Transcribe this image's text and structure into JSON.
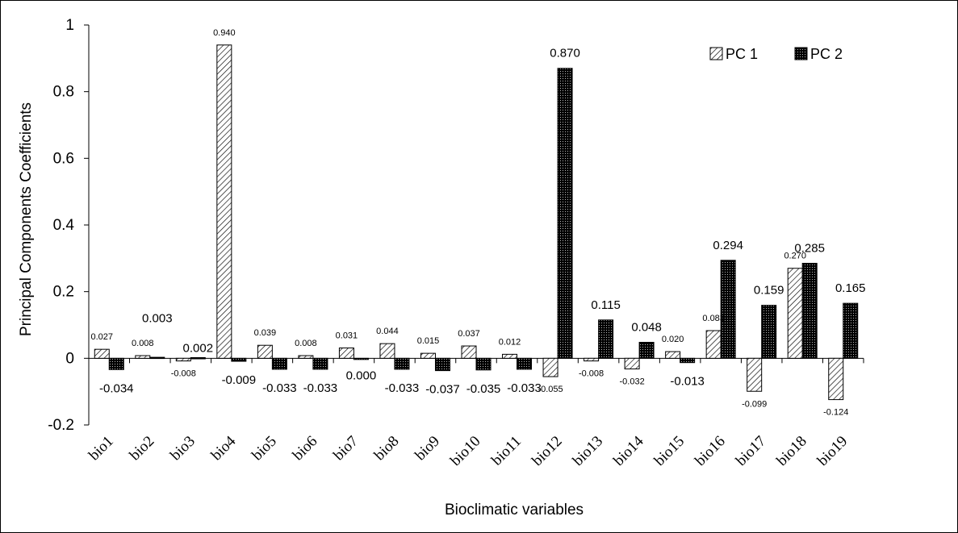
{
  "chart_data": {
    "type": "bar",
    "xlabel": "Bioclimatic variables",
    "ylabel": "Principal Components Coefficients",
    "ylim": [
      -0.2,
      1
    ],
    "yticks": [
      -0.2,
      0,
      0.2,
      0.4,
      0.6,
      0.8,
      1
    ],
    "ytick_labels": [
      "-0.2",
      "0",
      "0.2",
      "0.4",
      "0.6",
      "0.8",
      "1"
    ],
    "categories": [
      "bio1",
      "bio2",
      "bio3",
      "bio4",
      "bio5",
      "bio6",
      "bio7",
      "bio8",
      "bio9",
      "bio10",
      "bio11",
      "bio12",
      "bio13",
      "bio14",
      "bio15",
      "bio16",
      "bio17",
      "bio18",
      "bio19"
    ],
    "series": [
      {
        "name": "PC 1",
        "pattern": "diagonal",
        "values": [
          0.027,
          0.008,
          -0.008,
          0.94,
          0.039,
          0.008,
          0.031,
          0.044,
          0.015,
          0.037,
          0.012,
          -0.055,
          -0.008,
          -0.032,
          0.02,
          0.083,
          -0.099,
          0.27,
          -0.124
        ],
        "labels": [
          "0.027",
          "0.008",
          "-0.008",
          "0.940",
          "0.039",
          "0.008",
          "0.031",
          "0.044",
          "0.015",
          "0.037",
          "0.012",
          "-0.055",
          "-0.008",
          "-0.032",
          "0.020",
          "0.083",
          "-0.099",
          "0.270",
          "-0.124"
        ]
      },
      {
        "name": "PC 2",
        "pattern": "dark-grid",
        "values": [
          -0.034,
          0.003,
          0.002,
          -0.009,
          -0.033,
          -0.033,
          0.0,
          -0.033,
          -0.037,
          -0.035,
          -0.033,
          0.87,
          0.115,
          0.048,
          -0.013,
          0.294,
          0.159,
          0.285,
          0.165
        ],
        "labels": [
          "-0.034",
          "0.003",
          "0.002",
          "-0.009",
          "-0.033",
          "-0.033",
          "0.000",
          "-0.033",
          "-0.037",
          "-0.035",
          "-0.033",
          "0.870",
          "0.115",
          "0.048",
          "-0.013",
          "0.294",
          "0.159",
          "0.285",
          "0.165"
        ]
      }
    ],
    "legend_position": "top-right",
    "grid": false,
    "colors": {
      "pc1_fill": "#ffffff",
      "pc1_hatch": "#000000",
      "pc2_fill": "#000000",
      "pc2_dots": "#ffffff"
    }
  }
}
